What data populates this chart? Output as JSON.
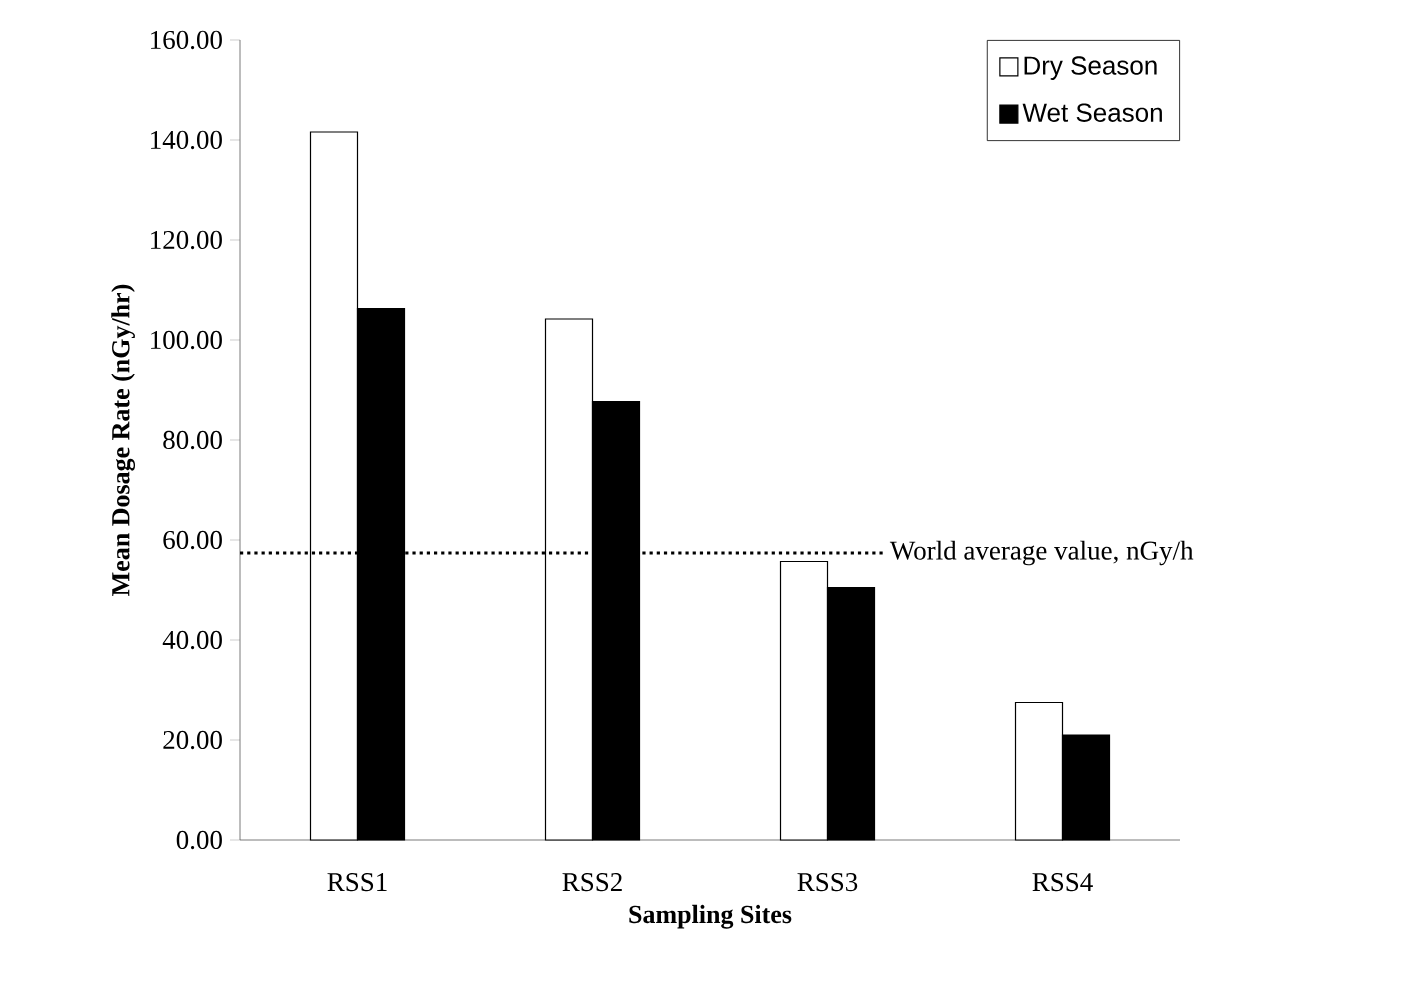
{
  "chart_data": {
    "type": "bar",
    "xlabel": "Sampling Sites",
    "ylabel": "Mean Dosage Rate (nGy/hr)",
    "categories": [
      "RSS1",
      "RSS2",
      "RSS3",
      "RSS4"
    ],
    "series": [
      {
        "name": "Dry Season",
        "color": "#ffffff",
        "values": [
          141.6,
          104.2,
          55.7,
          27.5
        ]
      },
      {
        "name": "Wet Season",
        "color": "#000000",
        "values": [
          106.3,
          87.7,
          50.5,
          21.0
        ]
      }
    ],
    "ylim": [
      0,
      160
    ],
    "yticks": [
      {
        "value": 0,
        "label": "0.00"
      },
      {
        "value": 20,
        "label": "20.00"
      },
      {
        "value": 40,
        "label": "40.00"
      },
      {
        "value": 60,
        "label": "60.00"
      },
      {
        "value": 80,
        "label": "80.00"
      },
      {
        "value": 100,
        "label": "100.00"
      },
      {
        "value": 120,
        "label": "120.00"
      },
      {
        "value": 140,
        "label": "140.00"
      },
      {
        "value": 160,
        "label": "160.00"
      }
    ],
    "ref_lines": [
      {
        "axis": "y",
        "value": 57.4,
        "label": "World average value, nGy/h",
        "line_style": "dotted",
        "color": "#000000"
      }
    ],
    "legend": "top right",
    "grid": false
  }
}
